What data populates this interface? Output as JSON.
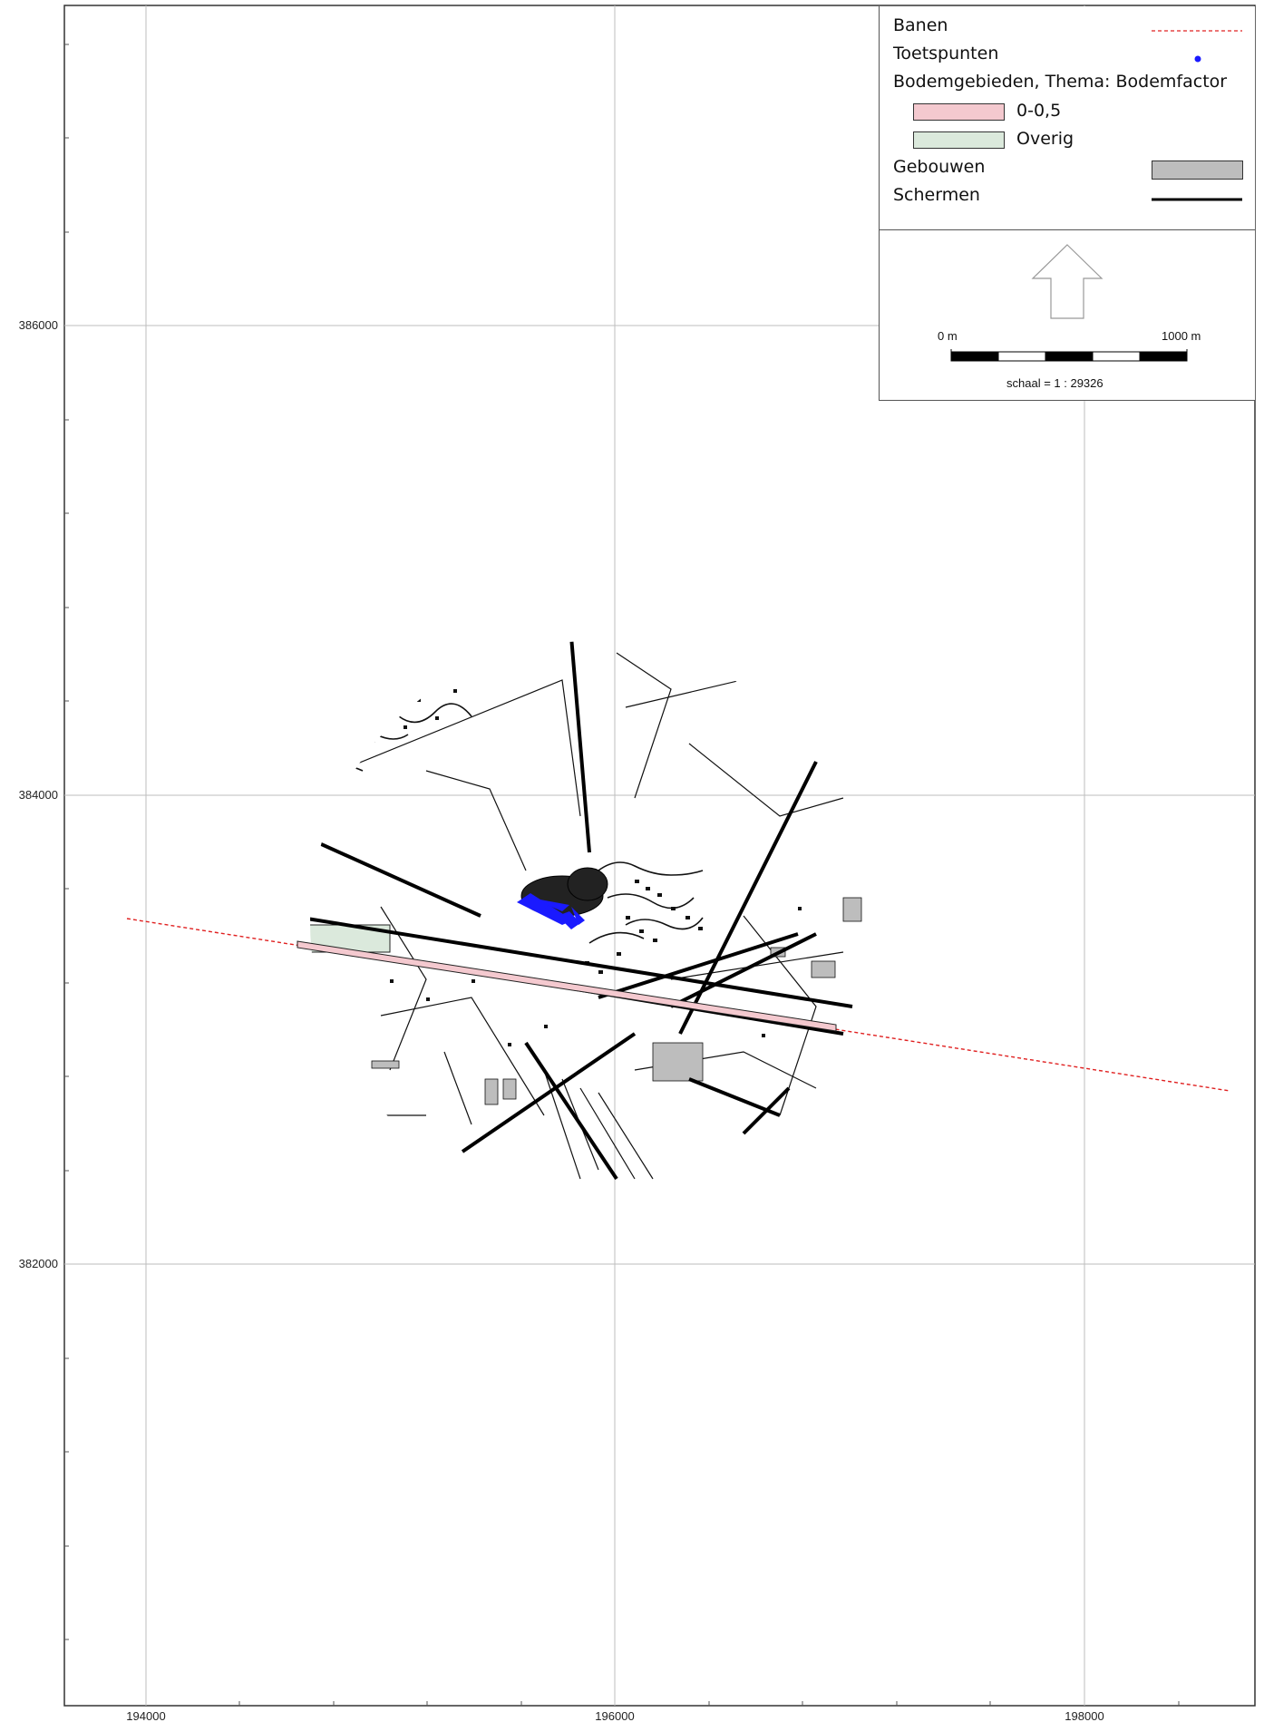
{
  "legend": {
    "banen": "Banen",
    "toetspunten": "Toetspunten",
    "bodemgebieden": "Bodemgebieden, Thema: Bodemfactor",
    "bodem_low": "0-0,5",
    "bodem_other": "Overig",
    "gebouwen": "Gebouwen",
    "schermen": "Schermen"
  },
  "scalebar": {
    "start_label": "0 m",
    "end_label": "1000 m",
    "scale_text": "schaal = 1 : 29326"
  },
  "axes": {
    "x_ticks": [
      "194000",
      "196000",
      "198000"
    ],
    "y_ticks": [
      "386000",
      "384000",
      "382000"
    ]
  },
  "colors": {
    "banen": "#e02020",
    "toetspunten": "#1a1aff",
    "bodem_low": "#f4c9cf",
    "bodem_other": "#dbe9dc",
    "gebouwen": "#bdbdbd",
    "schermen": "#000000",
    "grid": "#b0b0b0"
  }
}
